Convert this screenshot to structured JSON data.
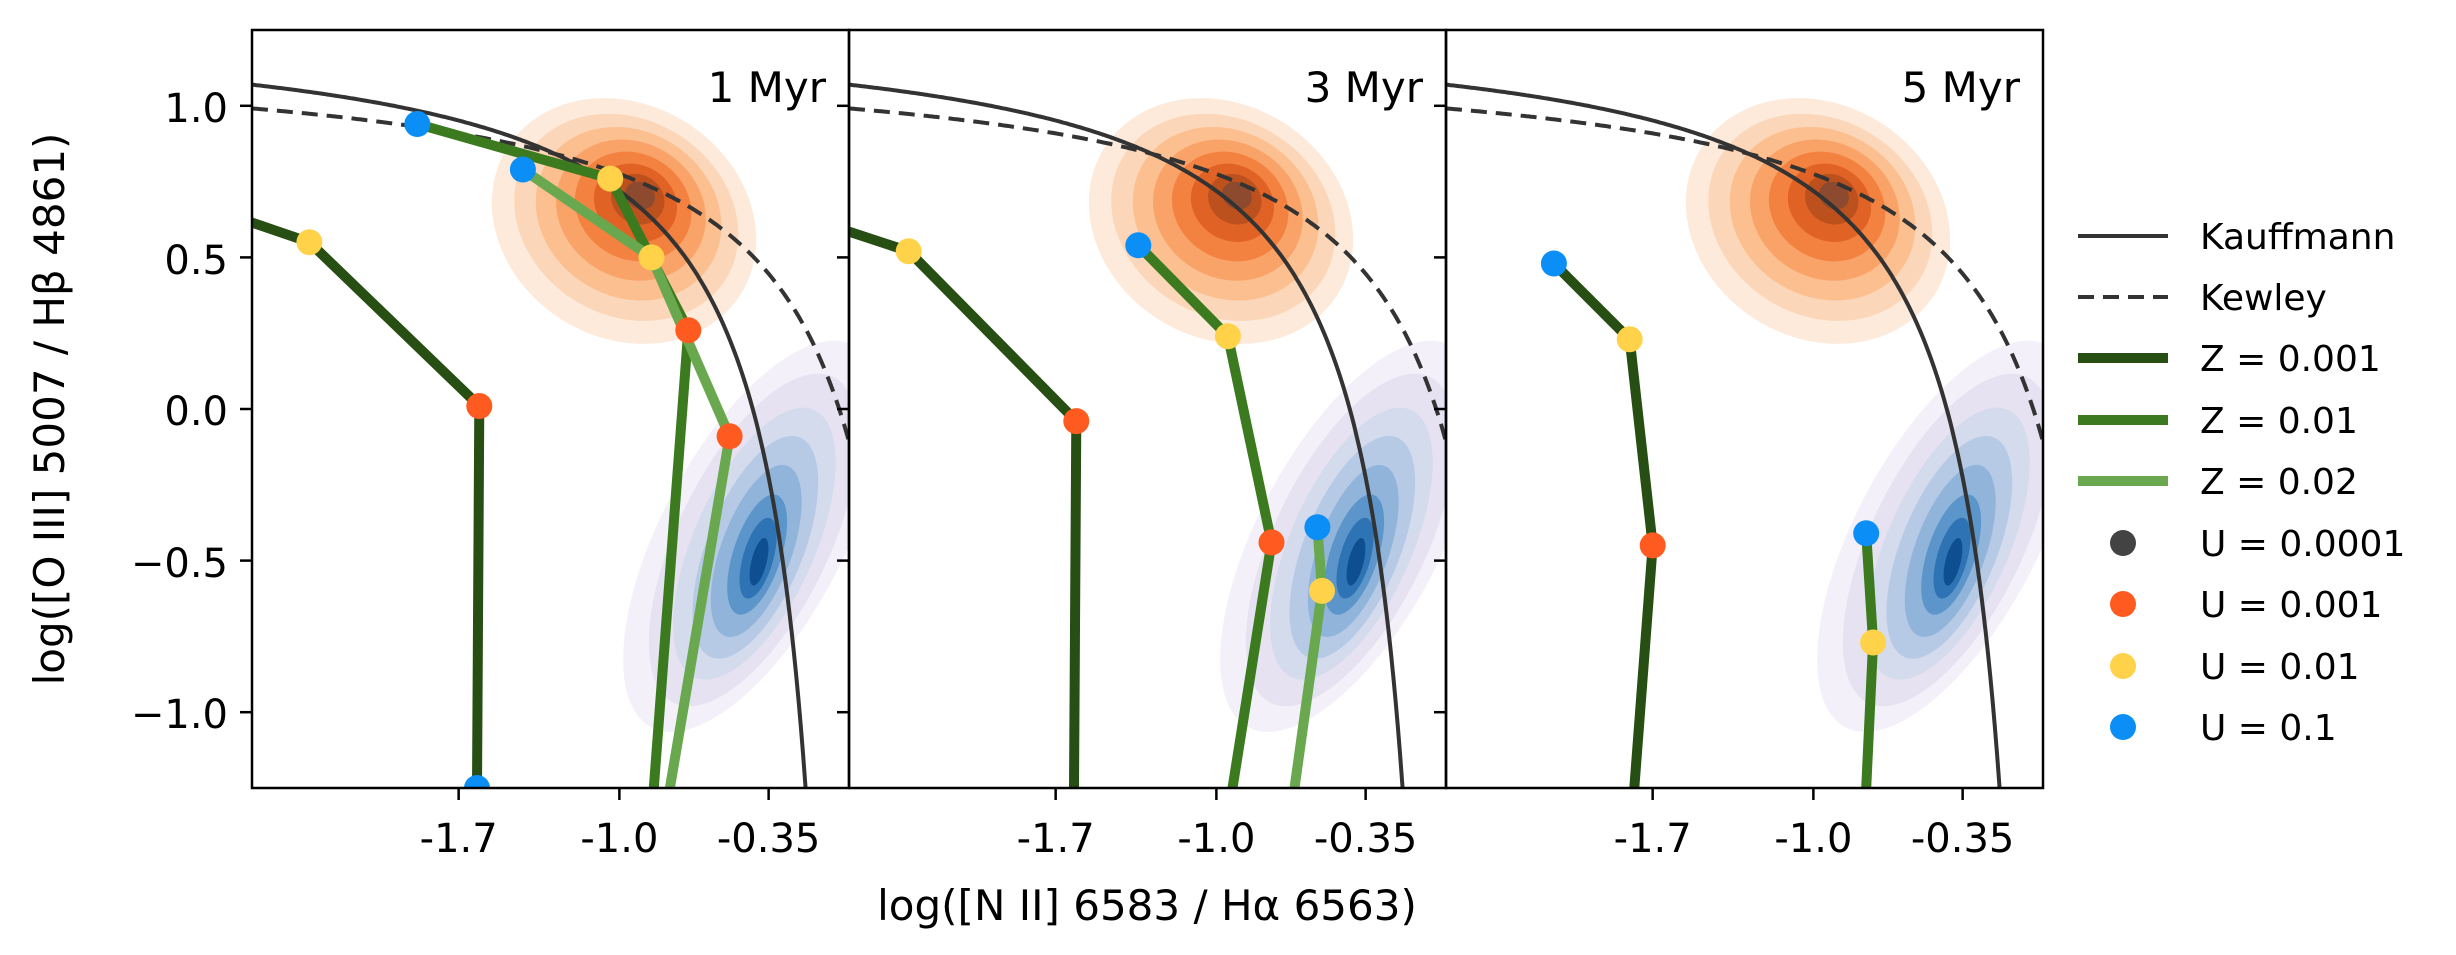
{
  "chart_data": {
    "type": "line",
    "xlabel": "log([N II] 6583 / Hα 6563)",
    "ylabel": "log([O III] 5007 / Hβ 4861)",
    "xlim": [
      -2.6,
      0.0
    ],
    "ylim": [
      -1.25,
      1.25
    ],
    "x_ticks": [
      -1.7,
      -1.0,
      -0.35
    ],
    "x_tick_labels": [
      "-1.7",
      "-1.0",
      "-0.35"
    ],
    "y_ticks": [
      1.0,
      0.5,
      0.0,
      -0.5,
      -1.0
    ],
    "y_tick_labels": [
      "1.0",
      "0.5",
      "0.0",
      "−0.5",
      "−1.0"
    ],
    "legend": {
      "placement": "right",
      "entries": [
        {
          "label": "Kauffmann",
          "kind": "line",
          "color": "#333333",
          "dash": "solid"
        },
        {
          "label": "Kewley",
          "kind": "line",
          "color": "#333333",
          "dash": "dashed"
        },
        {
          "label": "Z = 0.001",
          "kind": "line",
          "color": "#274e13",
          "dash": "solid"
        },
        {
          "label": "Z = 0.01",
          "kind": "line",
          "color": "#3b7a1f",
          "dash": "solid"
        },
        {
          "label": "Z = 0.02",
          "kind": "line",
          "color": "#6aa84f",
          "dash": "solid"
        },
        {
          "label": "U = 0.0001",
          "kind": "marker",
          "color": "#434343"
        },
        {
          "label": "U = 0.001",
          "kind": "marker",
          "color": "#ff5a1f"
        },
        {
          "label": "U = 0.01",
          "kind": "marker",
          "color": "#ffd24a"
        },
        {
          "label": "U = 0.1",
          "kind": "marker",
          "color": "#0b8ef5"
        }
      ]
    },
    "colors": {
      "Z=0.001": "#274e13",
      "Z=0.01": "#3b7a1f",
      "Z=0.02": "#6aa84f",
      "U=0.0001": "#434343",
      "U=0.001": "#ff5a1f",
      "U=0.01": "#ffd24a",
      "U=0.1": "#0b8ef5",
      "orange_density": "#e8590c",
      "blue_density": "#2b6cb0"
    },
    "panels": [
      {
        "title": "1 Myr",
        "tracks": [
          {
            "Z": "0.001",
            "points": [
              {
                "U": "0.1",
                "x": -1.62,
                "y": -1.25
              },
              {
                "U": "0.001",
                "x": -1.61,
                "y": 0.01
              },
              {
                "U": "0.01",
                "x": -2.35,
                "y": 0.55
              },
              {
                "U": null,
                "x": -2.62,
                "y": 0.62
              }
            ]
          },
          {
            "Z": "0.01",
            "points": [
              {
                "U": null,
                "x": -0.85,
                "y": -1.25
              },
              {
                "U": "0.001",
                "x": -0.7,
                "y": 0.26
              },
              {
                "U": "0.01",
                "x": -1.04,
                "y": 0.76
              },
              {
                "U": "0.1",
                "x": -1.88,
                "y": 0.94
              }
            ]
          },
          {
            "Z": "0.02",
            "points": [
              {
                "U": null,
                "x": -0.78,
                "y": -1.25
              },
              {
                "U": "0.001",
                "x": -0.52,
                "y": -0.09
              },
              {
                "U": "0.01",
                "x": -0.86,
                "y": 0.5
              },
              {
                "U": "0.1",
                "x": -1.42,
                "y": 0.79
              }
            ]
          }
        ]
      },
      {
        "title": "3 Myr",
        "tracks": [
          {
            "Z": "0.001",
            "points": [
              {
                "U": null,
                "x": -1.62,
                "y": -1.25
              },
              {
                "U": "0.001",
                "x": -1.61,
                "y": -0.04
              },
              {
                "U": "0.01",
                "x": -2.34,
                "y": 0.52
              },
              {
                "U": null,
                "x": -2.62,
                "y": 0.59
              }
            ]
          },
          {
            "Z": "0.01",
            "points": [
              {
                "U": null,
                "x": -0.93,
                "y": -1.25
              },
              {
                "U": "0.001",
                "x": -0.76,
                "y": -0.44
              },
              {
                "U": "0.01",
                "x": -0.95,
                "y": 0.24
              },
              {
                "U": "0.1",
                "x": -1.34,
                "y": 0.54
              }
            ]
          },
          {
            "Z": "0.02",
            "points": [
              {
                "U": null,
                "x": -0.66,
                "y": -1.25
              },
              {
                "U": "0.01",
                "x": -0.54,
                "y": -0.6
              },
              {
                "U": "0.1",
                "x": -0.56,
                "y": -0.39
              }
            ]
          }
        ]
      },
      {
        "title": "5 Myr",
        "tracks": [
          {
            "Z": "0.001",
            "points": [
              {
                "U": null,
                "x": -1.78,
                "y": -1.25
              },
              {
                "U": "0.001",
                "x": -1.7,
                "y": -0.45
              },
              {
                "U": "0.01",
                "x": -1.8,
                "y": 0.23
              },
              {
                "U": "0.1",
                "x": -2.13,
                "y": 0.48
              }
            ]
          },
          {
            "Z": "0.01",
            "points": [
              {
                "U": null,
                "x": -0.77,
                "y": -1.25
              },
              {
                "U": "0.01",
                "x": -0.74,
                "y": -0.77
              },
              {
                "U": "0.1",
                "x": -0.77,
                "y": -0.41
              }
            ]
          }
        ]
      }
    ]
  }
}
